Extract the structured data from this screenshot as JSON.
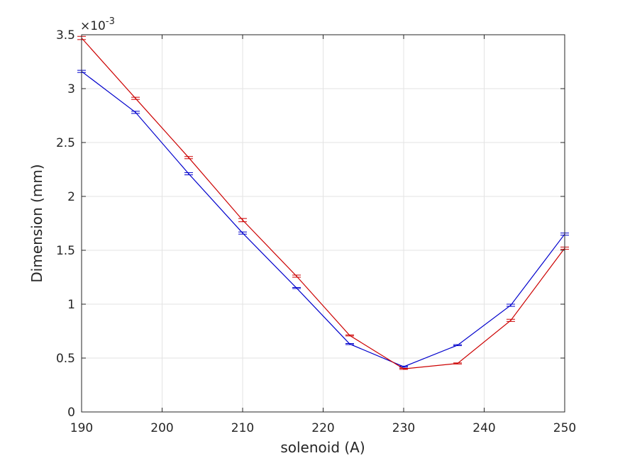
{
  "chart_data": {
    "type": "line",
    "title": "",
    "xlabel": "solenoid (A)",
    "ylabel": "Dimension (mm)",
    "xlim": [
      190,
      250
    ],
    "ylim": [
      0,
      0.0035
    ],
    "y_exponent_label": "×10",
    "y_exponent_power": "-3",
    "grid": true,
    "x_ticks": [
      190,
      200,
      210,
      220,
      230,
      240,
      250
    ],
    "x_tick_labels": [
      "190",
      "200",
      "210",
      "220",
      "230",
      "240",
      "250"
    ],
    "y_ticks": [
      0,
      0.0005,
      0.001,
      0.0015,
      0.002,
      0.0025,
      0.003,
      0.0035
    ],
    "y_tick_labels": [
      "0",
      "0.5",
      "1",
      "1.5",
      "2",
      "2.5",
      "3",
      "3.5"
    ],
    "x": [
      190,
      196.7,
      203.3,
      210,
      216.7,
      223.3,
      230,
      236.7,
      243.3,
      250
    ],
    "series": [
      {
        "color": "#0000cc",
        "values": [
          0.00316,
          0.00278,
          0.00221,
          0.00166,
          0.00115,
          0.00063,
          0.00042,
          0.00062,
          0.00099,
          0.00165
        ],
        "errors": [
          1e-05,
          1e-05,
          1e-05,
          1e-05,
          5e-06,
          5e-06,
          5e-06,
          5e-06,
          1e-05,
          1e-05
        ]
      },
      {
        "color": "#cc0000",
        "values": [
          0.00347,
          0.00291,
          0.00236,
          0.00178,
          0.00126,
          0.00071,
          0.0004,
          0.00045,
          0.00085,
          0.00152
        ],
        "errors": [
          1.5e-05,
          1e-05,
          1e-05,
          1.5e-05,
          1e-05,
          5e-06,
          5e-06,
          5e-06,
          1e-05,
          1e-05
        ]
      }
    ]
  }
}
